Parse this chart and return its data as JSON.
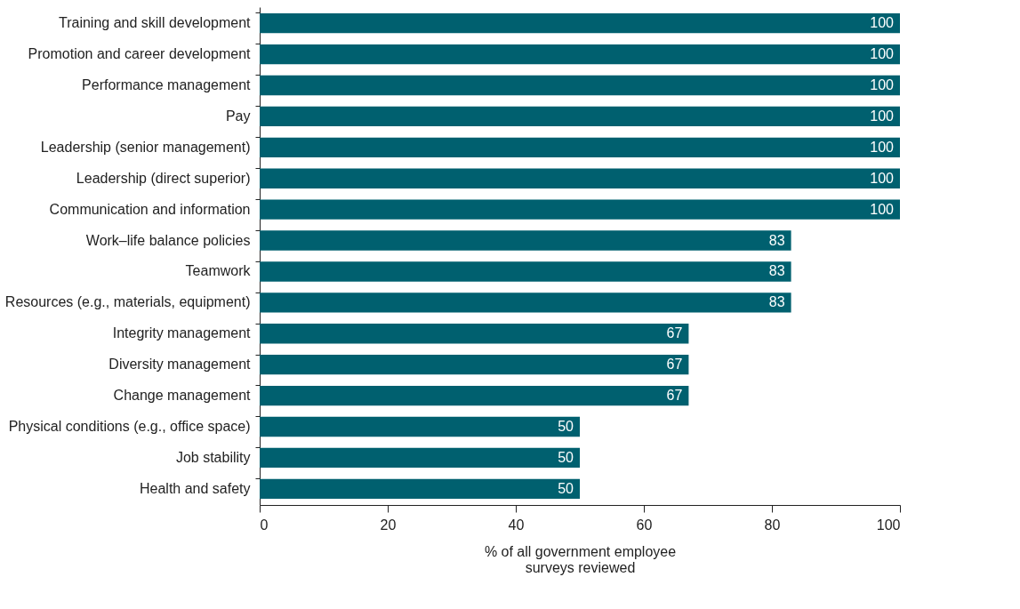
{
  "chart_data": {
    "type": "bar",
    "orientation": "horizontal",
    "categories": [
      "Training and skill development",
      "Promotion and career development",
      "Performance management",
      "Pay",
      "Leadership (senior management)",
      "Leadership (direct superior)",
      "Communication and information",
      "Work–life balance policies",
      "Teamwork",
      "Resources (e.g., materials, equipment)",
      "Integrity management",
      "Diversity management",
      "Change management",
      "Physical conditions (e.g., office space)",
      "Job stability",
      "Health and safety"
    ],
    "values": [
      100,
      100,
      100,
      100,
      100,
      100,
      100,
      83,
      83,
      83,
      67,
      67,
      67,
      50,
      50,
      50
    ],
    "color": "#00606f",
    "xlabel": "% of all government employee surveys reviewed",
    "xlim": [
      0,
      100
    ],
    "xticks": [
      0,
      20,
      40,
      60,
      80,
      100
    ],
    "data_labels": true,
    "grid": false
  }
}
